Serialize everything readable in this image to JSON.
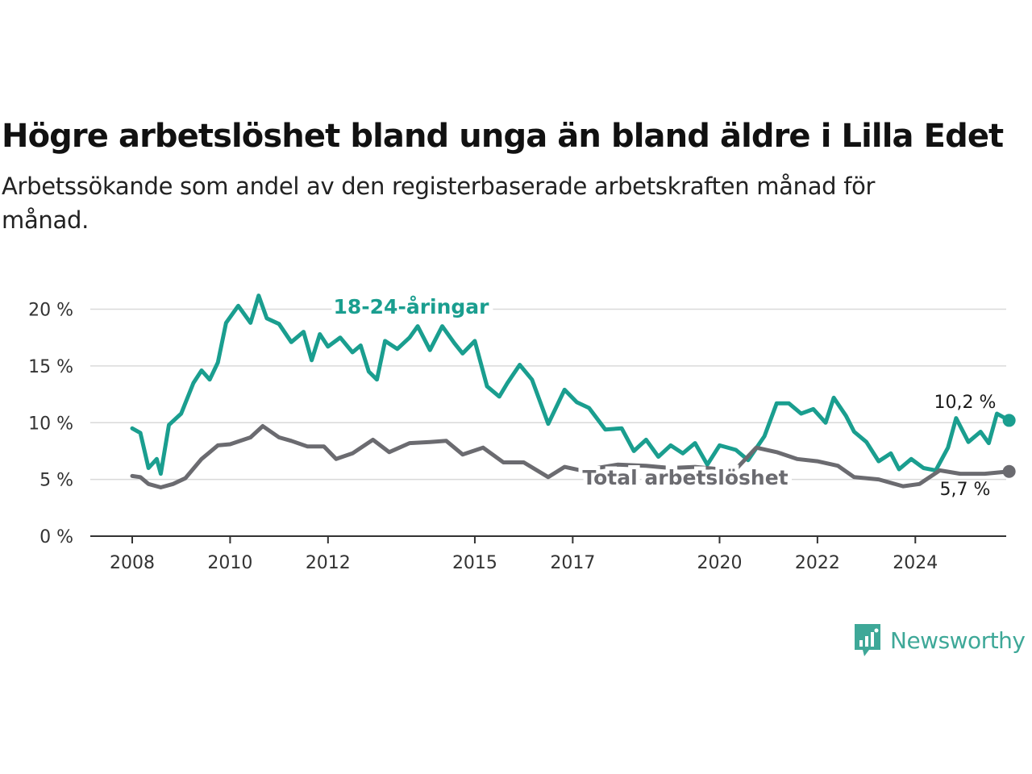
{
  "chart_data": {
    "type": "line",
    "title": "Högre arbetslöshet bland unga än bland äldre i Lilla Edet",
    "subtitle": "Arbetssökande som andel av den registerbaserade arbetskraften månad för månad.",
    "x_ticks": [
      "2008",
      "2010",
      "2012",
      "2015",
      "2017",
      "2020",
      "2022",
      "2024"
    ],
    "y_ticks": [
      "0 %",
      "5 %",
      "10 %",
      "15 %",
      "20 %"
    ],
    "ylim": [
      0,
      21.5
    ],
    "grid": true,
    "colors": {
      "youth": "#1a9e8f",
      "total": "#6b6b70"
    },
    "series": [
      {
        "name": "18-24-åringar",
        "end_label": "10,2 %",
        "points": [
          [
            "2008-01",
            9.5
          ],
          [
            "2008-03",
            9.1
          ],
          [
            "2008-05",
            6.0
          ],
          [
            "2008-07",
            6.8
          ],
          [
            "2008-08",
            5.5
          ],
          [
            "2008-10",
            9.8
          ],
          [
            "2009-01",
            10.8
          ],
          [
            "2009-04",
            13.5
          ],
          [
            "2009-06",
            14.6
          ],
          [
            "2009-08",
            13.8
          ],
          [
            "2009-10",
            15.3
          ],
          [
            "2009-12",
            18.8
          ],
          [
            "2010-03",
            20.3
          ],
          [
            "2010-06",
            18.8
          ],
          [
            "2010-08",
            21.2
          ],
          [
            "2010-10",
            19.2
          ],
          [
            "2011-01",
            18.7
          ],
          [
            "2011-04",
            17.1
          ],
          [
            "2011-07",
            18.0
          ],
          [
            "2011-09",
            15.5
          ],
          [
            "2011-11",
            17.8
          ],
          [
            "2012-01",
            16.7
          ],
          [
            "2012-04",
            17.5
          ],
          [
            "2012-07",
            16.2
          ],
          [
            "2012-09",
            16.8
          ],
          [
            "2012-11",
            14.5
          ],
          [
            "2013-01",
            13.8
          ],
          [
            "2013-03",
            17.2
          ],
          [
            "2013-06",
            16.5
          ],
          [
            "2013-09",
            17.5
          ],
          [
            "2013-11",
            18.5
          ],
          [
            "2014-02",
            16.4
          ],
          [
            "2014-05",
            18.5
          ],
          [
            "2014-08",
            17.0
          ],
          [
            "2014-10",
            16.1
          ],
          [
            "2015-01",
            17.2
          ],
          [
            "2015-04",
            13.2
          ],
          [
            "2015-07",
            12.3
          ],
          [
            "2015-09",
            13.5
          ],
          [
            "2015-12",
            15.1
          ],
          [
            "2016-03",
            13.8
          ],
          [
            "2016-07",
            9.9
          ],
          [
            "2016-11",
            12.9
          ],
          [
            "2017-02",
            11.8
          ],
          [
            "2017-05",
            11.3
          ],
          [
            "2017-09",
            9.4
          ],
          [
            "2018-01",
            9.5
          ],
          [
            "2018-04",
            7.5
          ],
          [
            "2018-07",
            8.5
          ],
          [
            "2018-10",
            7.0
          ],
          [
            "2019-01",
            8.0
          ],
          [
            "2019-04",
            7.3
          ],
          [
            "2019-07",
            8.2
          ],
          [
            "2019-10",
            6.3
          ],
          [
            "2020-01",
            8.0
          ],
          [
            "2020-05",
            7.6
          ],
          [
            "2020-08",
            6.7
          ],
          [
            "2020-12",
            8.8
          ],
          [
            "2021-03",
            11.7
          ],
          [
            "2021-06",
            11.7
          ],
          [
            "2021-09",
            10.8
          ],
          [
            "2021-12",
            11.2
          ],
          [
            "2022-03",
            10.0
          ],
          [
            "2022-05",
            12.2
          ],
          [
            "2022-08",
            10.6
          ],
          [
            "2022-10",
            9.2
          ],
          [
            "2023-01",
            8.3
          ],
          [
            "2023-04",
            6.6
          ],
          [
            "2023-07",
            7.3
          ],
          [
            "2023-09",
            5.9
          ],
          [
            "2023-12",
            6.8
          ],
          [
            "2024-03",
            6.0
          ],
          [
            "2024-06",
            5.8
          ],
          [
            "2024-09",
            7.8
          ],
          [
            "2024-11",
            10.4
          ],
          [
            "2025-02",
            8.3
          ],
          [
            "2025-05",
            9.2
          ],
          [
            "2025-07",
            8.2
          ],
          [
            "2025-09",
            10.8
          ],
          [
            "2025-12",
            10.2
          ]
        ]
      },
      {
        "name": "Total arbetslöshet",
        "end_label": "5,7 %",
        "points": [
          [
            "2008-01",
            5.3
          ],
          [
            "2008-03",
            5.2
          ],
          [
            "2008-05",
            4.6
          ],
          [
            "2008-08",
            4.3
          ],
          [
            "2008-11",
            4.6
          ],
          [
            "2009-02",
            5.1
          ],
          [
            "2009-06",
            6.8
          ],
          [
            "2009-10",
            8.0
          ],
          [
            "2010-01",
            8.1
          ],
          [
            "2010-06",
            8.7
          ],
          [
            "2010-09",
            9.7
          ],
          [
            "2011-01",
            8.7
          ],
          [
            "2011-04",
            8.4
          ],
          [
            "2011-08",
            7.9
          ],
          [
            "2011-12",
            7.9
          ],
          [
            "2012-03",
            6.8
          ],
          [
            "2012-07",
            7.3
          ],
          [
            "2012-12",
            8.5
          ],
          [
            "2013-04",
            7.4
          ],
          [
            "2013-09",
            8.2
          ],
          [
            "2014-02",
            8.3
          ],
          [
            "2014-06",
            8.4
          ],
          [
            "2014-10",
            7.2
          ],
          [
            "2015-03",
            7.8
          ],
          [
            "2015-08",
            6.5
          ],
          [
            "2016-01",
            6.5
          ],
          [
            "2016-07",
            5.2
          ],
          [
            "2016-11",
            6.1
          ],
          [
            "2017-03",
            5.8
          ],
          [
            "2017-07",
            6.0
          ],
          [
            "2017-12",
            6.3
          ],
          [
            "2018-07",
            6.2
          ],
          [
            "2019-01",
            6.0
          ],
          [
            "2019-07",
            6.1
          ],
          [
            "2020-01",
            5.9
          ],
          [
            "2020-05",
            5.9
          ],
          [
            "2020-10",
            7.8
          ],
          [
            "2021-03",
            7.4
          ],
          [
            "2021-08",
            6.8
          ],
          [
            "2022-01",
            6.6
          ],
          [
            "2022-06",
            6.2
          ],
          [
            "2022-10",
            5.2
          ],
          [
            "2023-04",
            5.0
          ],
          [
            "2023-10",
            4.4
          ],
          [
            "2024-02",
            4.6
          ],
          [
            "2024-07",
            5.8
          ],
          [
            "2024-12",
            5.5
          ],
          [
            "2025-06",
            5.5
          ],
          [
            "2025-12",
            5.7
          ]
        ]
      }
    ]
  },
  "logo": {
    "text": "Newsworthy"
  }
}
